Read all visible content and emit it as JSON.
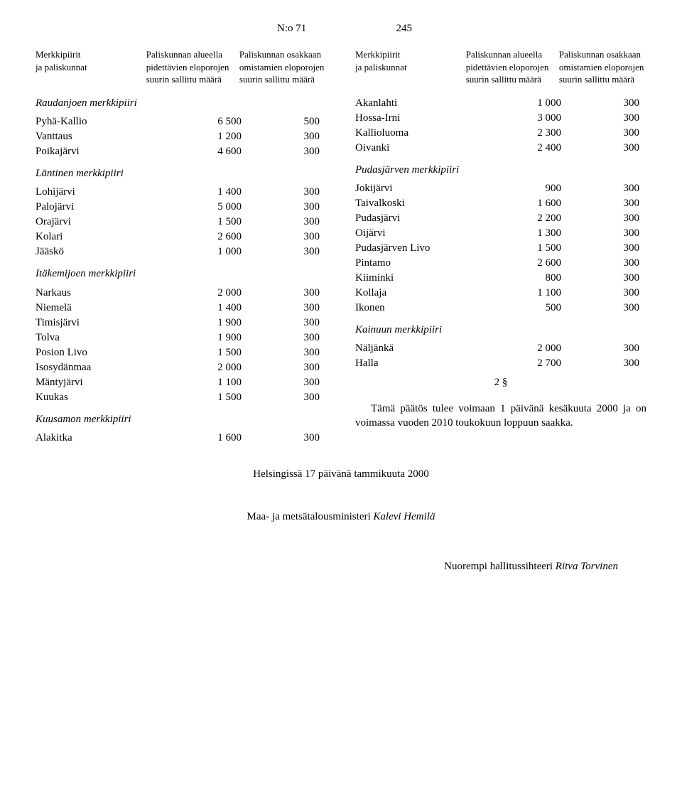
{
  "header": {
    "label": "N:o 71",
    "page": "245"
  },
  "colheaders": {
    "h1": "Merkkipiirit\nja paliskunnat",
    "h2": "Paliskunnan alueella pidettävien eloporojen suurin sallittu määrä",
    "h3": "Paliskunnan osakkaan omistamien eloporojen suurin sallittu määrä"
  },
  "left": {
    "sections": [
      {
        "title": "Raudanjoen merkkipiiri",
        "rows": [
          {
            "n": "Pyhä-Kallio",
            "a": "6 500",
            "b": "500"
          },
          {
            "n": "Vanttaus",
            "a": "1 200",
            "b": "300"
          },
          {
            "n": "Poikajärvi",
            "a": "4 600",
            "b": "300"
          }
        ]
      },
      {
        "title": "Läntinen merkkipiiri",
        "rows": [
          {
            "n": "Lohijärvi",
            "a": "1 400",
            "b": "300"
          },
          {
            "n": "Palojärvi",
            "a": "5 000",
            "b": "300"
          },
          {
            "n": "Orajärvi",
            "a": "1 500",
            "b": "300"
          },
          {
            "n": "Kolari",
            "a": "2 600",
            "b": "300"
          },
          {
            "n": "Jääskö",
            "a": "1 000",
            "b": "300"
          }
        ]
      },
      {
        "title": "Itäkemijoen merkkipiiri",
        "rows": [
          {
            "n": "Narkaus",
            "a": "2 000",
            "b": "300"
          },
          {
            "n": "Niemelä",
            "a": "1 400",
            "b": "300"
          },
          {
            "n": "Timisjärvi",
            "a": "1 900",
            "b": "300"
          },
          {
            "n": "Tolva",
            "a": "1 900",
            "b": "300"
          },
          {
            "n": "Posion Livo",
            "a": "1 500",
            "b": "300"
          },
          {
            "n": "Isosydänmaa",
            "a": "2 000",
            "b": "300"
          },
          {
            "n": "Mäntyjärvi",
            "a": "1 100",
            "b": "300"
          },
          {
            "n": "Kuukas",
            "a": "1 500",
            "b": "300"
          }
        ]
      },
      {
        "title": "Kuusamon merkkipiiri",
        "rows": [
          {
            "n": "Alakitka",
            "a": "1 600",
            "b": "300"
          }
        ]
      }
    ]
  },
  "right": {
    "toprows": [
      {
        "n": "Akanlahti",
        "a": "1 000",
        "b": "300"
      },
      {
        "n": "Hossa-Irni",
        "a": "3 000",
        "b": "300"
      },
      {
        "n": "Kallioluoma",
        "a": "2 300",
        "b": "300"
      },
      {
        "n": "Oivanki",
        "a": "2 400",
        "b": "300"
      }
    ],
    "sections": [
      {
        "title": "Pudasjärven merkkipiiri",
        "rows": [
          {
            "n": "Jokijärvi",
            "a": "900",
            "b": "300"
          },
          {
            "n": "Taivalkoski",
            "a": "1 600",
            "b": "300"
          },
          {
            "n": "Pudasjärvi",
            "a": "2 200",
            "b": "300"
          },
          {
            "n": "Oijärvi",
            "a": "1 300",
            "b": "300"
          },
          {
            "n": "Pudasjärven Livo",
            "a": "1 500",
            "b": "300"
          },
          {
            "n": "Pintamo",
            "a": "2 600",
            "b": "300"
          },
          {
            "n": "Kiiminki",
            "a": "800",
            "b": "300"
          },
          {
            "n": "Kollaja",
            "a": "1 100",
            "b": "300"
          },
          {
            "n": "Ikonen",
            "a": "500",
            "b": "300"
          }
        ]
      },
      {
        "title": "Kainuun merkkipiiri",
        "rows": [
          {
            "n": "Näljänkä",
            "a": "2 000",
            "b": "300"
          },
          {
            "n": "Halla",
            "a": "2 700",
            "b": "300"
          }
        ]
      }
    ],
    "section2": "2 §",
    "para": "Tämä päätös tulee voimaan 1 päivänä kesäkuuta 2000 ja on voimassa vuoden 2010 toukokuun loppuun saakka."
  },
  "footer1": "Helsingissä 17 päivänä tammikuuta 2000",
  "footer2": "Maa- ja metsätalousministeri Kalevi Hemilä",
  "footer3": "Nuorempi hallitussihteeri Ritva Torvinen"
}
